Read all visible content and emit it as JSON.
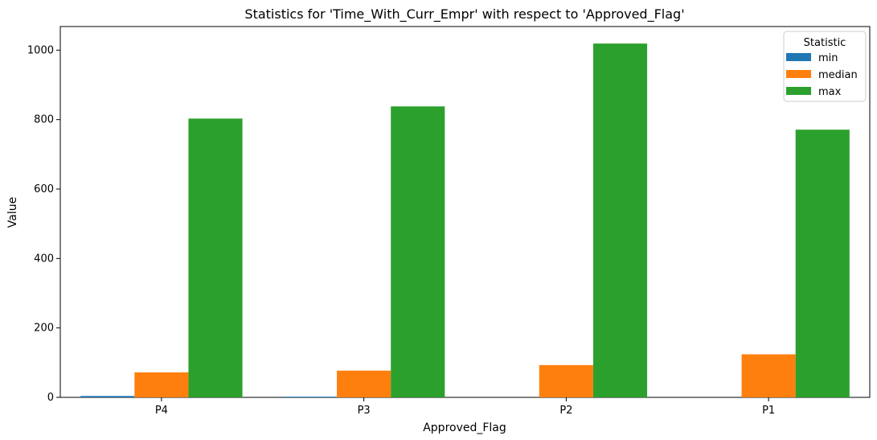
{
  "chart_data": {
    "type": "bar",
    "title": "Statistics for 'Time_With_Curr_Empr' with respect to 'Approved_Flag'",
    "xlabel": "Approved_Flag",
    "ylabel": "Value",
    "categories": [
      "P4",
      "P3",
      "P2",
      "P1"
    ],
    "series": [
      {
        "name": "min",
        "color": "#1f77b4",
        "values": [
          4,
          2,
          0,
          0
        ]
      },
      {
        "name": "median",
        "color": "#ff7f0e",
        "values": [
          72,
          77,
          93,
          124
        ]
      },
      {
        "name": "max",
        "color": "#2ca02c",
        "values": [
          803,
          838,
          1019,
          771
        ]
      }
    ],
    "ylim": [
      0,
      1068
    ],
    "yticks": [
      0,
      200,
      400,
      600,
      800,
      1000
    ],
    "legend": {
      "title": "Statistic",
      "placement": "top-right"
    },
    "grid": false
  }
}
